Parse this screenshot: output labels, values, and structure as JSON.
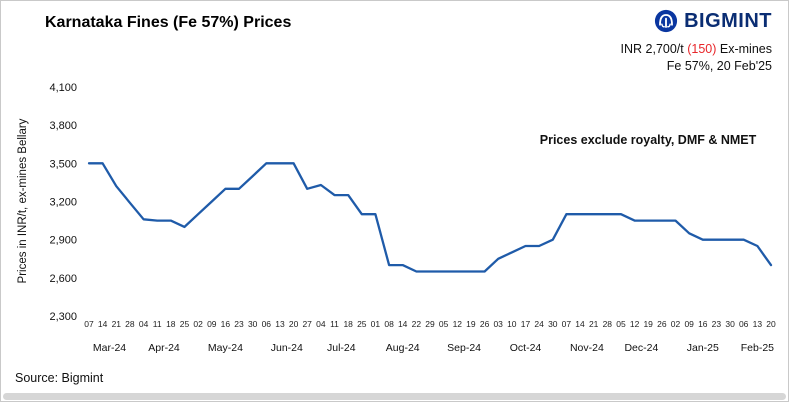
{
  "title": "Karnataka Fines (Fe 57%) Prices",
  "brand": {
    "name": "BIGMINT",
    "color": "#0a2d73"
  },
  "summary": {
    "price_prefix": "INR 2,700/t ",
    "price_change": "(150)",
    "price_suffix": " Ex-mines",
    "spec": "Fe 57%, 20 Feb'25",
    "change_color": "#e8262a"
  },
  "source": "Source: Bigmint",
  "chart_data": {
    "type": "line",
    "title": "Karnataka Fines (Fe 57%) Prices",
    "ylabel": "Prices in INR/t, ex-mines Bellary",
    "annotation": "Prices exclude royalty, DMF & NMET",
    "ylim": [
      2300,
      4100
    ],
    "yticks": [
      2300,
      2600,
      2900,
      3200,
      3500,
      3800,
      4100
    ],
    "grid": false,
    "legend": false,
    "line_color": "#1f5ba9",
    "months": [
      {
        "label": "Mar-24",
        "dates": [
          "07",
          "14",
          "21",
          "28"
        ]
      },
      {
        "label": "Apr-24",
        "dates": [
          "04",
          "11",
          "18",
          "25"
        ]
      },
      {
        "label": "May-24",
        "dates": [
          "02",
          "09",
          "16",
          "23",
          "30"
        ]
      },
      {
        "label": "Jun-24",
        "dates": [
          "06",
          "13",
          "20",
          "27"
        ]
      },
      {
        "label": "Jul-24",
        "dates": [
          "04",
          "11",
          "18",
          "25"
        ]
      },
      {
        "label": "Aug-24",
        "dates": [
          "01",
          "08",
          "14",
          "22",
          "29"
        ]
      },
      {
        "label": "Sep-24",
        "dates": [
          "05",
          "12",
          "19",
          "26"
        ]
      },
      {
        "label": "Oct-24",
        "dates": [
          "03",
          "10",
          "17",
          "24",
          "30"
        ]
      },
      {
        "label": "Nov-24",
        "dates": [
          "07",
          "14",
          "21",
          "28"
        ]
      },
      {
        "label": "Dec-24",
        "dates": [
          "05",
          "12",
          "19",
          "26"
        ]
      },
      {
        "label": "Jan-25",
        "dates": [
          "02",
          "09",
          "16",
          "23",
          "30"
        ]
      },
      {
        "label": "Feb-25",
        "dates": [
          "06",
          "13",
          "20"
        ]
      }
    ],
    "values": [
      3500,
      3500,
      3320,
      3190,
      3060,
      3050,
      3050,
      3000,
      3100,
      3200,
      3300,
      3300,
      3400,
      3500,
      3500,
      3500,
      3300,
      3330,
      3250,
      3250,
      3100,
      3100,
      2700,
      2700,
      2650,
      2650,
      2650,
      2650,
      2650,
      2650,
      2750,
      2800,
      2850,
      2850,
      2900,
      3100,
      3100,
      3100,
      3100,
      3100,
      3050,
      3050,
      3050,
      3050,
      2950,
      2900,
      2900,
      2900,
      2900,
      2850,
      2700
    ]
  }
}
